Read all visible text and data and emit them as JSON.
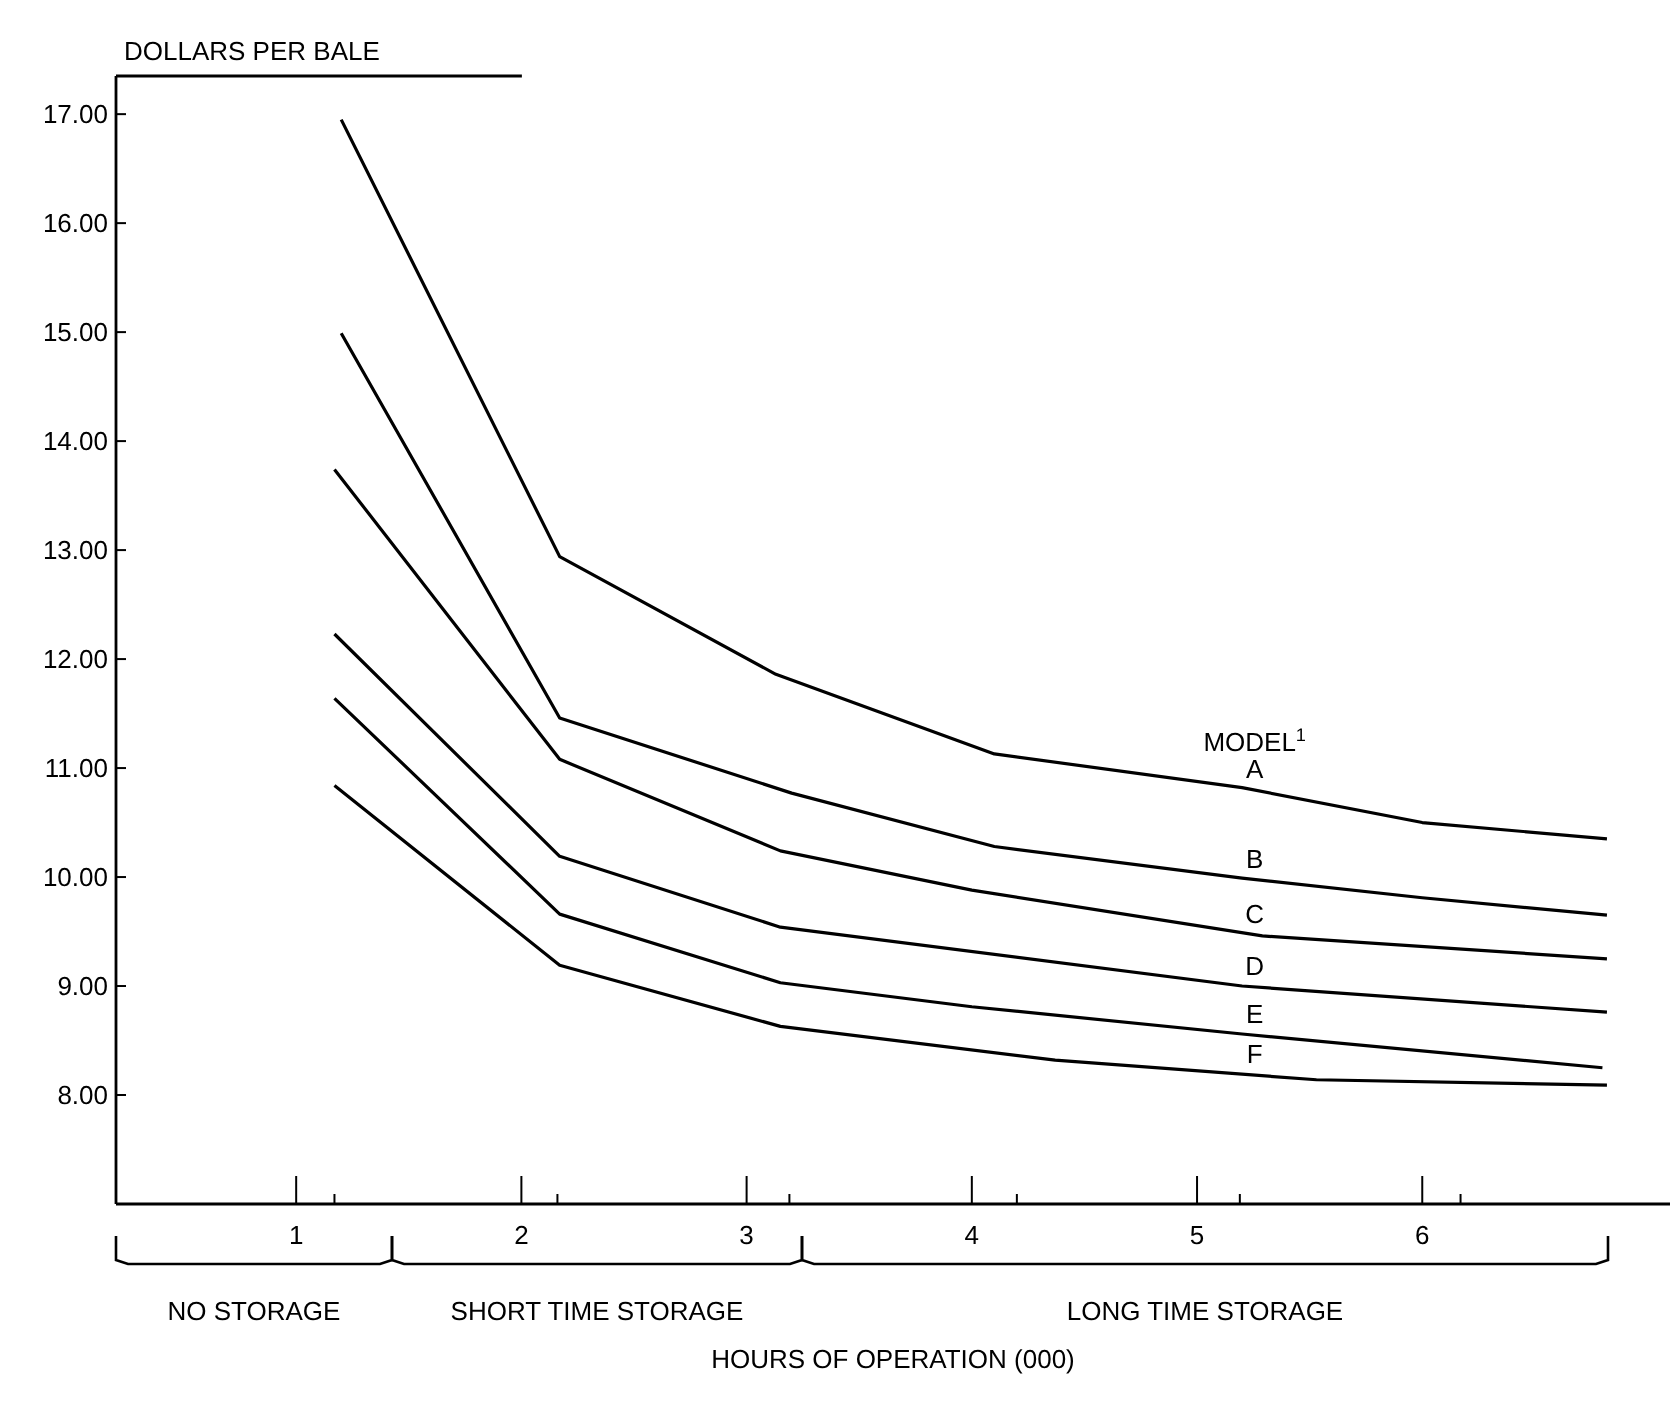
{
  "chart_data": {
    "type": "line",
    "ylabel": "DOLLARS PER BALE",
    "xlabel": "HOURS OF OPERATION (000)",
    "legend_title": "MODEL$^{1}$",
    "xlim": [
      0.2,
      7.1
    ],
    "ylim": [
      7,
      17.35
    ],
    "xticks": [
      1,
      {
        "value": 1.17,
        "label": null
      },
      2,
      {
        "value": 2.16,
        "label": null
      },
      3,
      {
        "value": 3.19,
        "label": null
      },
      4,
      {
        "value": 4.2,
        "label": null
      },
      5,
      {
        "value": 5.19,
        "label": null
      },
      6,
      {
        "value": 6.17,
        "label": null
      }
    ],
    "yticks": [
      {
        "value": 8,
        "label": "8.00"
      },
      {
        "value": 9,
        "label": "9.00"
      },
      {
        "value": 10,
        "label": "10.00"
      },
      {
        "value": 11,
        "label": "11.00"
      },
      {
        "value": 12,
        "label": "12.00"
      },
      {
        "value": 13,
        "label": "13.00"
      },
      {
        "value": 14,
        "label": "14.00"
      },
      {
        "value": 15,
        "label": "15.00"
      },
      {
        "value": 16,
        "label": "16.00"
      },
      {
        "value": 17,
        "label": "17.00"
      }
    ],
    "grid": false,
    "marker": "none",
    "line_style": "solid",
    "annotations": [
      "NO STORAGE",
      "SHORT TIME STORAGE",
      "LONG TIME STORAGE"
    ],
    "series": [
      {
        "name": "A",
        "color": "#000000",
        "x": [
          1.2,
          2.17,
          3.13,
          4.1,
          5.2,
          6.0,
          6.82
        ],
        "values": [
          16.95,
          12.94,
          11.86,
          11.13,
          10.82,
          10.5,
          10.35
        ]
      },
      {
        "name": "B",
        "color": "#000000",
        "x": [
          1.2,
          2.17,
          3.2,
          4.1,
          5.2,
          6.0,
          6.82
        ],
        "values": [
          14.99,
          11.46,
          10.77,
          10.28,
          9.99,
          9.81,
          9.65
        ]
      },
      {
        "name": "C",
        "color": "#000000",
        "x": [
          1.17,
          2.17,
          3.15,
          4.0,
          5.29,
          6.82
        ],
        "values": [
          13.74,
          11.08,
          10.24,
          9.88,
          9.46,
          9.25
        ]
      },
      {
        "name": "D",
        "color": "#000000",
        "x": [
          1.17,
          2.17,
          3.15,
          5.2,
          6.82
        ],
        "values": [
          12.23,
          10.19,
          9.54,
          9.0,
          8.76
        ]
      },
      {
        "name": "E",
        "color": "#000000",
        "x": [
          1.17,
          2.17,
          3.15,
          4.0,
          5.2,
          6.8
        ],
        "values": [
          11.64,
          9.66,
          9.03,
          8.81,
          8.56,
          8.25
        ]
      },
      {
        "name": "F",
        "color": "#000000",
        "x": [
          1.17,
          2.17,
          3.15,
          4.37,
          5.53,
          6.82
        ],
        "values": [
          10.84,
          9.19,
          8.63,
          8.32,
          8.14,
          8.09
        ]
      }
    ]
  }
}
